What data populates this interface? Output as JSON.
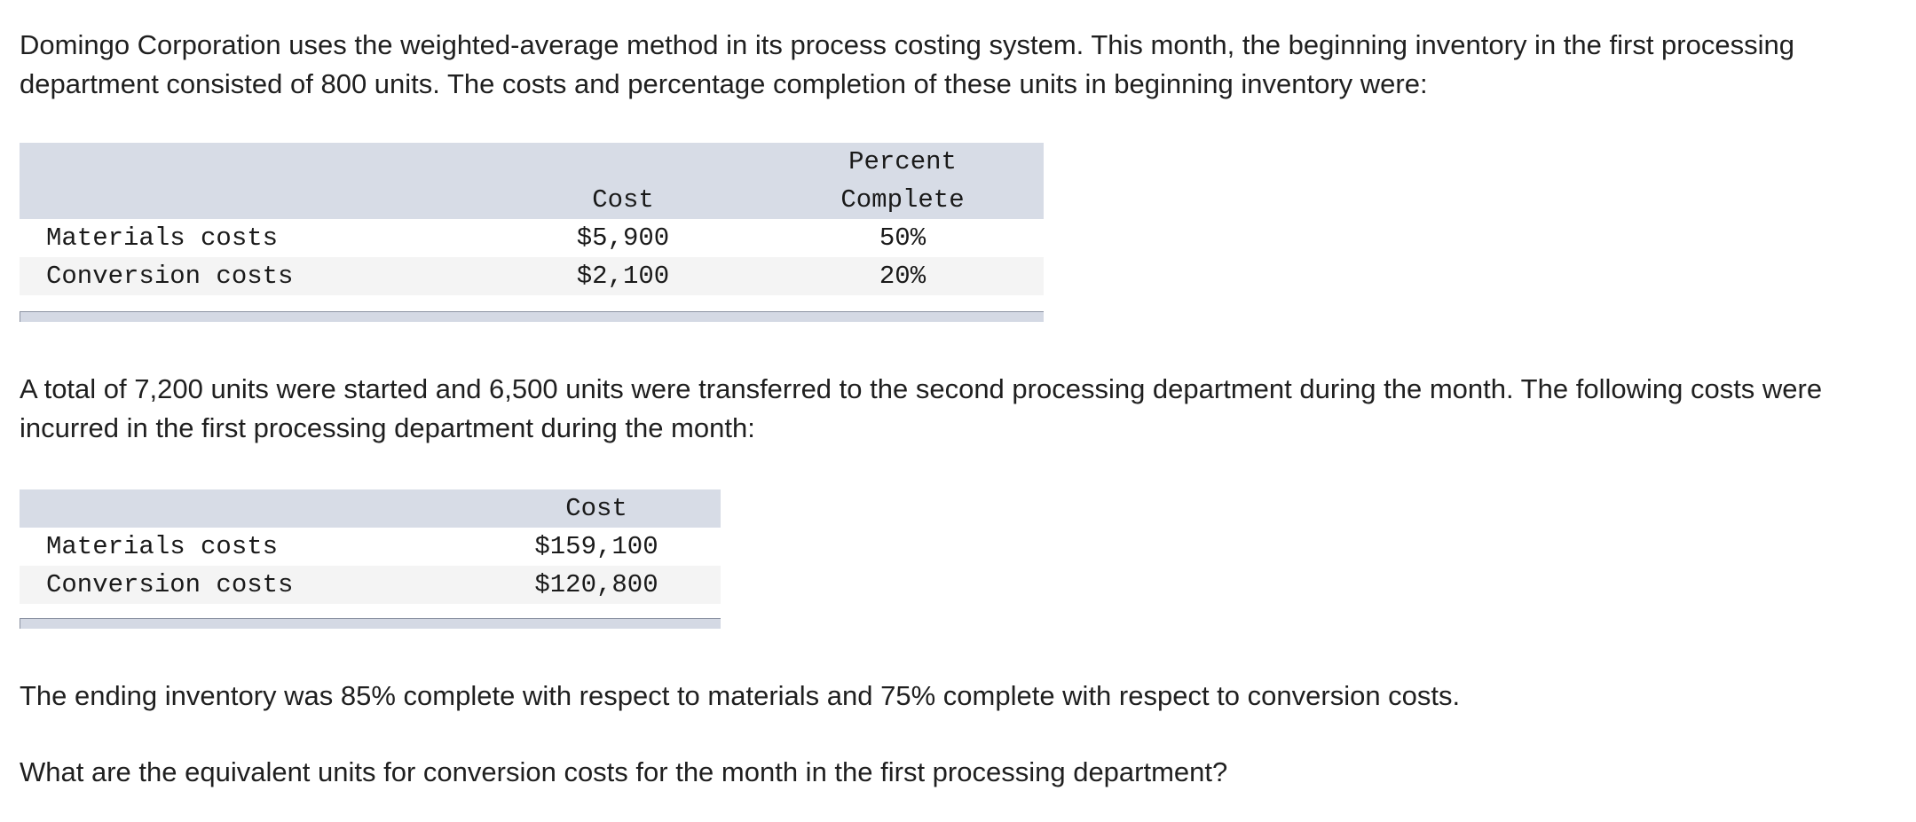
{
  "intro": {
    "paragraph": "Domingo Corporation uses the weighted-average method in its process costing system. This month, the beginning inventory in the first processing department consisted of 800 units. The costs and percentage completion of these units in beginning inventory were:"
  },
  "beginning_inventory_table": {
    "header_cost": "Cost",
    "header_percent_line1": "Percent",
    "header_percent_line2": "Complete",
    "rows": [
      {
        "label": "Materials costs",
        "cost": "$5,900",
        "percent": "50%"
      },
      {
        "label": "Conversion costs",
        "cost": "$2,100",
        "percent": "20%"
      }
    ]
  },
  "middle": {
    "paragraph": "A total of 7,200 units were started and 6,500 units were transferred to the second processing department during the month. The following costs were incurred in the first processing department during the month:"
  },
  "current_costs_table": {
    "header_cost": "Cost",
    "rows": [
      {
        "label": "Materials costs",
        "cost": "$159,100"
      },
      {
        "label": "Conversion costs",
        "cost": "$120,800"
      }
    ]
  },
  "ending": {
    "paragraph": "The ending inventory was 85% complete with respect to materials and 75% complete with respect to conversion costs."
  },
  "question": {
    "paragraph": "What are the equivalent units for conversion costs for the month in the first processing department?"
  }
}
